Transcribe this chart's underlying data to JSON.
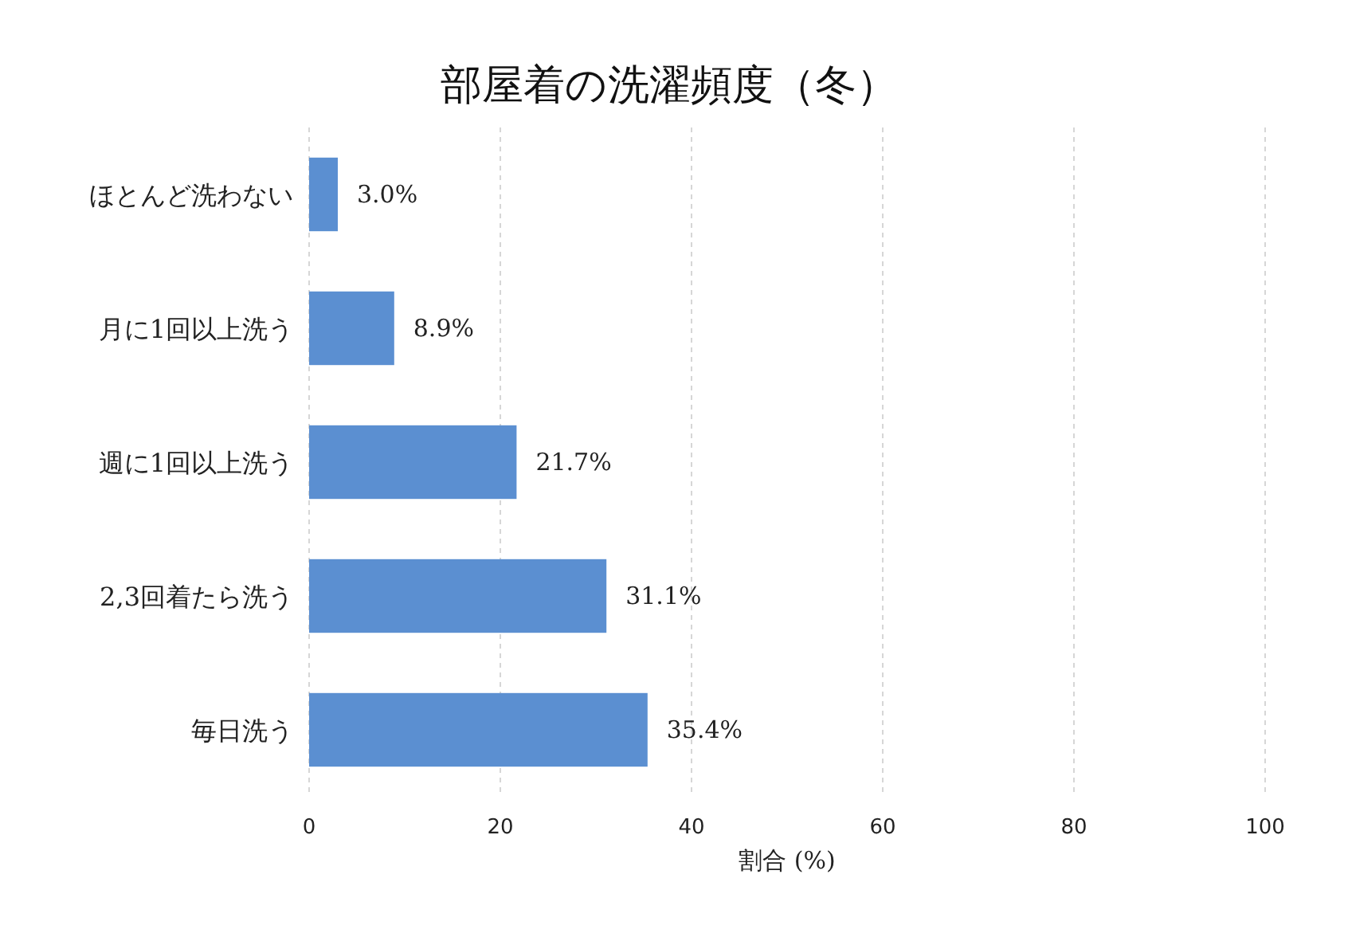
{
  "chart_data": {
    "type": "bar",
    "orientation": "horizontal",
    "title": "部屋着の洗濯頻度（冬）",
    "xlabel": "割合 (%)",
    "categories": [
      "ほとんど洗わない",
      "月に1回以上洗う",
      "週に1回以上洗う",
      "2,3回着たら洗う",
      "毎日洗う"
    ],
    "values": [
      3.0,
      8.9,
      21.7,
      31.1,
      35.4
    ],
    "value_labels": [
      "3.0%",
      "8.9%",
      "21.7%",
      "31.1%",
      "35.4%"
    ],
    "color": "#5b8fd1",
    "xlim": [
      0,
      100
    ],
    "xticks": [
      0,
      20,
      40,
      60,
      80,
      100
    ],
    "grid": "x"
  }
}
